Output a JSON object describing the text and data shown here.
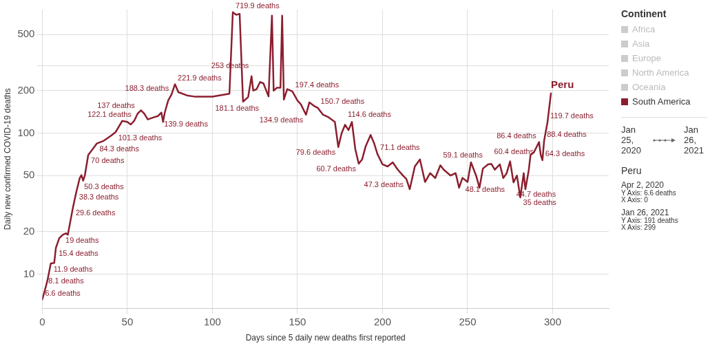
{
  "chart_data": {
    "type": "line",
    "xlabel": "Days since 5 daily new deaths first reported",
    "ylabel": "Daily new confirmed COVID-19 deaths",
    "legend_title": "Continent",
    "legend": "right",
    "log": "y",
    "grid": true,
    "line_style": "solid",
    "marker": "none",
    "xlim": [
      0,
      333
    ],
    "xticks": [
      0,
      50,
      100,
      150,
      200,
      250,
      300
    ],
    "ylim": [
      5.7,
      750
    ],
    "yticks": [
      10,
      20,
      50,
      100,
      200,
      {
        "value": 300,
        "label": null
      },
      500
    ],
    "series": [
      {
        "name": "Africa",
        "color": "#cccccc",
        "values": [
          null
        ]
      },
      {
        "name": "Asia",
        "color": "#cccccc",
        "values": [
          null
        ]
      },
      {
        "name": "Europe",
        "color": "#cccccc",
        "values": [
          null
        ]
      },
      {
        "name": "North America",
        "color": "#cccccc",
        "values": [
          null
        ]
      },
      {
        "name": "Oceania",
        "color": "#cccccc",
        "values": [
          null
        ]
      },
      {
        "name": "South America",
        "color": "#8b1e2e",
        "x": [
          0,
          2,
          3,
          5,
          7,
          8,
          10,
          12,
          14,
          15,
          16,
          18,
          20,
          22,
          23,
          24,
          25,
          27,
          30,
          32,
          36,
          40,
          43,
          47,
          50,
          52,
          54,
          56,
          58,
          60,
          62,
          66,
          68,
          70,
          71,
          72,
          74,
          76,
          78,
          80,
          85,
          90,
          100,
          110,
          112,
          114,
          116,
          118,
          121,
          123,
          124,
          126,
          128,
          130,
          133,
          135,
          136,
          138,
          140,
          141,
          142,
          144,
          147,
          150,
          152,
          155,
          157,
          160,
          162,
          165,
          168,
          172,
          174,
          176,
          178,
          180,
          182,
          184,
          186,
          188,
          190,
          193,
          195,
          197,
          200,
          203,
          206,
          209,
          212,
          214,
          216,
          219,
          222,
          225,
          228,
          231,
          234,
          236,
          240,
          243,
          245,
          247,
          250,
          252,
          255,
          257,
          259,
          262,
          264,
          266,
          269,
          271,
          273,
          275,
          277,
          279,
          281,
          283,
          284,
          286,
          287,
          289,
          292,
          293,
          294,
          295,
          297,
          299
        ],
        "values": [
          6.6,
          8.1,
          9,
          11.9,
          12,
          15.4,
          18,
          19,
          19.5,
          19,
          22,
          29.6,
          38.3,
          48,
          50.3,
          46,
          50,
          70,
          78,
          84.3,
          88,
          95,
          101.3,
          122,
          120,
          115,
          122.1,
          137,
          145,
          137,
          125,
          130,
          132,
          139.9,
          120,
          140,
          170,
          188.3,
          221.9,
          195,
          185,
          181,
          181.1,
          190,
          719.9,
          690,
          700,
          167,
          180,
          253,
          200,
          205,
          230,
          225,
          182,
          680,
          200,
          210,
          210,
          680,
          173,
          205,
          197.4,
          170,
          160,
          134.9,
          165,
          155,
          150.7,
          135,
          130,
          120,
          79.6,
          100,
          114.6,
          105,
          120,
          77,
          60.7,
          65,
          80,
          97,
          85,
          71.1,
          60,
          58,
          62,
          55,
          50,
          47.3,
          40,
          58,
          65,
          45,
          52,
          48,
          59.1,
          55,
          50,
          52,
          41,
          48.1,
          45,
          62,
          50,
          41,
          56,
          60,
          60.4,
          55,
          60,
          48,
          52,
          63,
          44.7,
          50,
          35,
          52,
          40,
          55,
          70,
          73,
          86.4,
          70,
          64.3,
          88.4,
          119.7,
          191
        ],
        "value_labels": [
          "6.6 deaths",
          "8.1 deaths",
          null,
          "11.9 deaths",
          null,
          "15.4 deaths",
          null,
          "19 deaths",
          null,
          null,
          null,
          "29.6 deaths",
          "38.3 deaths",
          null,
          "50.3 deaths",
          null,
          null,
          "70 deaths",
          null,
          "84.3 deaths",
          null,
          null,
          "101.3 deaths",
          null,
          null,
          null,
          "122.1 deaths",
          "137 deaths",
          null,
          null,
          null,
          null,
          null,
          "139.9 deaths",
          null,
          null,
          null,
          "188.3 deaths",
          "221.9 deaths",
          null,
          null,
          null,
          "181.1 deaths",
          null,
          "719.9 deaths",
          null,
          null,
          null,
          null,
          "253 deaths",
          null,
          null,
          null,
          null,
          null,
          null,
          null,
          null,
          null,
          null,
          null,
          null,
          "197.4 deaths",
          null,
          null,
          "134.9 deaths",
          null,
          null,
          "150.7 deaths",
          null,
          null,
          null,
          "79.6 deaths",
          null,
          "114.6 deaths",
          null,
          null,
          null,
          "60.7 deaths",
          null,
          null,
          null,
          null,
          "71.1 deaths",
          null,
          null,
          null,
          null,
          null,
          "47.3 deaths",
          null,
          null,
          null,
          null,
          null,
          null,
          "59.1 deaths",
          null,
          null,
          null,
          null,
          "48.1 deaths",
          null,
          null,
          null,
          null,
          null,
          null,
          "60.4 deaths",
          null,
          null,
          null,
          null,
          null,
          "44.7 deaths",
          null,
          "35 deaths",
          null,
          null,
          null,
          null,
          null,
          "86.4 deaths",
          null,
          "64.3 deaths",
          "88.4 deaths",
          "119.7 deaths",
          null
        ]
      }
    ],
    "annotations": [
      {
        "text": "Peru",
        "x": 299,
        "y": 191
      },
      "Jan 25, 2020",
      "Jan 26, 2021",
      "Peru",
      "Apr 2, 2020",
      "Y Axis: 6.6 deaths",
      "X Axis: 0",
      "Jan 26, 2021",
      "Y Axis: 191 deaths",
      "X Axis: 299"
    ]
  }
}
